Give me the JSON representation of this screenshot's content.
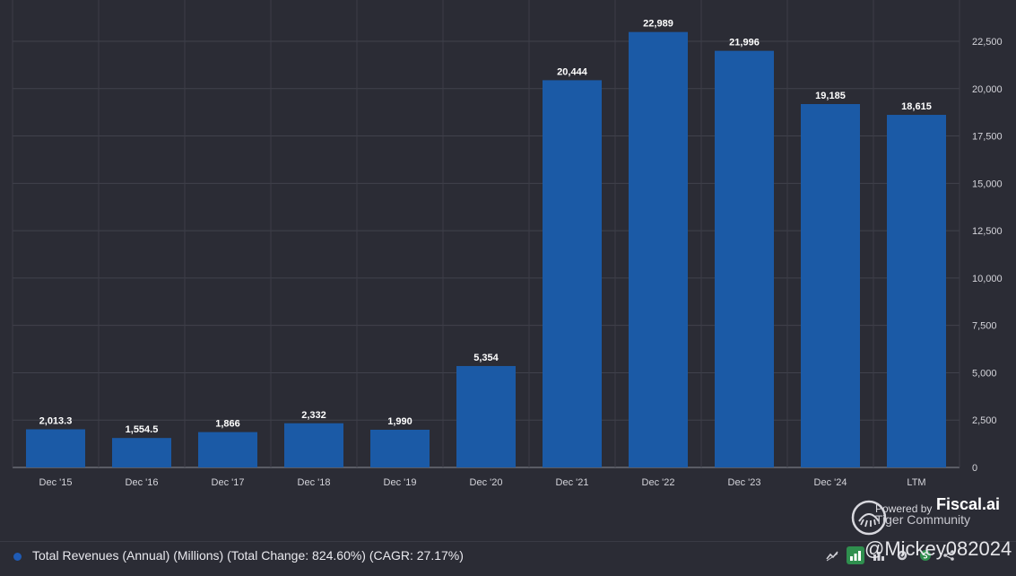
{
  "chart_data": {
    "type": "bar",
    "categories": [
      "Dec '15",
      "Dec '16",
      "Dec '17",
      "Dec '18",
      "Dec '19",
      "Dec '20",
      "Dec '21",
      "Dec '22",
      "Dec '23",
      "Dec '24",
      "LTM"
    ],
    "values": [
      2013.3,
      1554.5,
      1866,
      2332,
      1990,
      5354,
      20444,
      22989,
      21996,
      19185,
      18615
    ],
    "data_labels": [
      "2,013.3",
      "1,554.5",
      "1,866",
      "2,332",
      "1,990",
      "5,354",
      "20,444",
      "22,989",
      "21,996",
      "19,185",
      "18,615"
    ],
    "y_ticks": [
      0,
      2500,
      5000,
      7500,
      10000,
      12500,
      15000,
      17500,
      20000,
      22500
    ],
    "y_tick_labels": [
      "0",
      "2,500",
      "5,000",
      "7,500",
      "10,000",
      "12,500",
      "15,000",
      "17,500",
      "20,000",
      "22,500"
    ],
    "ylim": [
      0,
      24000
    ],
    "y_axis_position": "right",
    "grid": true,
    "bar_color": "#1b5aa6",
    "series_name": "Total Revenues (Annual) (Millions) (Total Change: 824.60%) (CAGR: 27.17%)"
  },
  "legend": {
    "label": "Total Revenues (Annual) (Millions) (Total Change: 824.60%) (CAGR: 27.17%)",
    "color": "#1f5bb5"
  },
  "branding": {
    "powered_by": "Powered by",
    "brand": "Fiscal.ai",
    "community": "Tiger Community",
    "handle": "@Mickey082024"
  },
  "toolbar": {
    "icons": [
      "line-chart-icon",
      "bar-chart-icon",
      "bar-chart-alt-icon",
      "settings-icon",
      "dollar-icon",
      "share-icon"
    ]
  }
}
